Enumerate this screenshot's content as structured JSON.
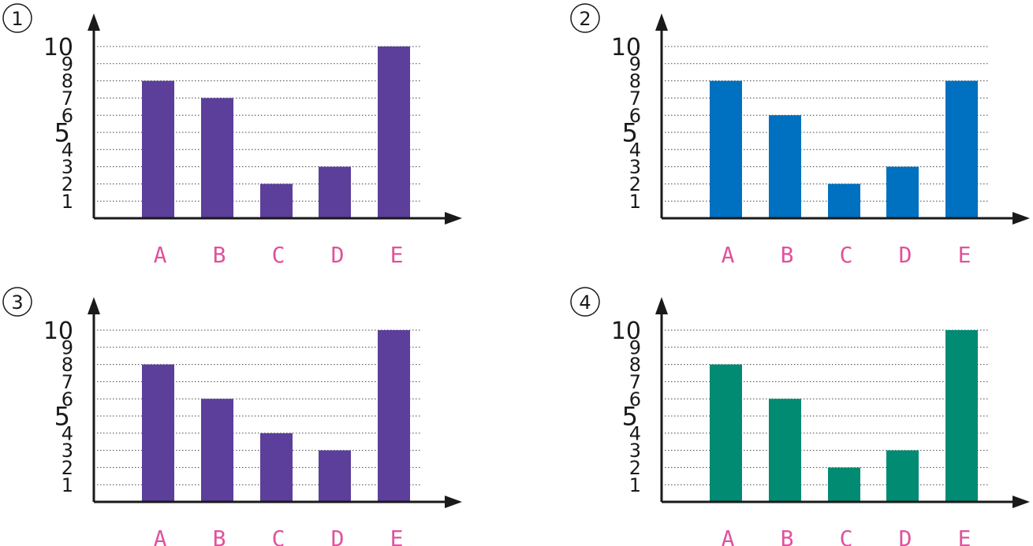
{
  "chart_data": [
    {
      "type": "bar",
      "label": "1",
      "categories": [
        "A",
        "B",
        "C",
        "D",
        "E"
      ],
      "values": [
        8,
        7,
        2,
        3,
        10
      ],
      "color": "#5b3f9a",
      "yticks": [
        "1",
        "2",
        "3",
        "4",
        "5",
        "6",
        "7",
        "8",
        "9",
        "10"
      ],
      "ylim": [
        0,
        10
      ],
      "grid": true,
      "xlabel": "",
      "ylabel": "",
      "title": ""
    },
    {
      "type": "bar",
      "label": "2",
      "categories": [
        "A",
        "B",
        "C",
        "D",
        "E"
      ],
      "values": [
        8,
        6,
        2,
        3,
        8
      ],
      "color": "#0070c0",
      "yticks": [
        "1",
        "2",
        "3",
        "4",
        "5",
        "6",
        "7",
        "8",
        "9",
        "10"
      ],
      "ylim": [
        0,
        10
      ],
      "grid": true,
      "xlabel": "",
      "ylabel": "",
      "title": ""
    },
    {
      "type": "bar",
      "label": "3",
      "categories": [
        "A",
        "B",
        "C",
        "D",
        "E"
      ],
      "values": [
        8,
        6,
        4,
        3,
        10
      ],
      "color": "#5b3f9a",
      "yticks": [
        "1",
        "2",
        "3",
        "4",
        "5",
        "6",
        "7",
        "8",
        "9",
        "10"
      ],
      "ylim": [
        0,
        10
      ],
      "grid": true,
      "xlabel": "",
      "ylabel": "",
      "title": ""
    },
    {
      "type": "bar",
      "label": "4",
      "categories": [
        "A",
        "B",
        "C",
        "D",
        "E"
      ],
      "values": [
        8,
        6,
        2,
        3,
        10
      ],
      "color": "#008b72",
      "yticks": [
        "1",
        "2",
        "3",
        "4",
        "5",
        "6",
        "7",
        "8",
        "9",
        "10"
      ],
      "ylim": [
        0,
        10
      ],
      "grid": true,
      "xlabel": "",
      "ylabel": "",
      "title": ""
    }
  ],
  "style": {
    "category_label_color": "#e0529c",
    "axis_color": "#1a1a1a"
  }
}
